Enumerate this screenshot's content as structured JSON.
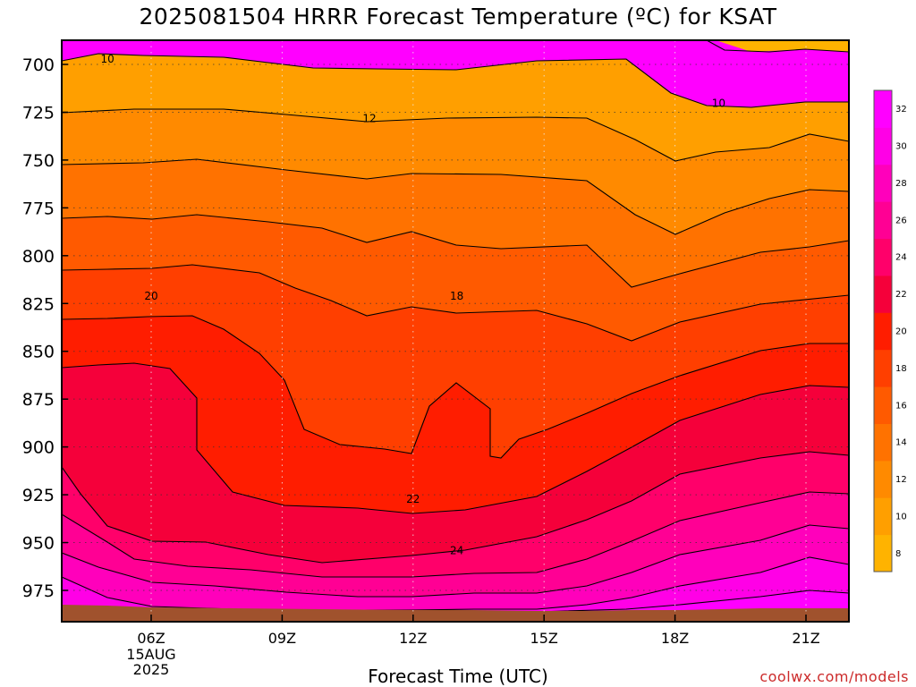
{
  "header": {
    "title": "2025081504 HRRR Forecast Temperature (ºC) for KSAT"
  },
  "footer": {
    "xlabel": "Forecast Time (UTC)",
    "credit": "coolwx.com/models"
  },
  "colors": {
    "terrain": "#a0522d",
    "fill_bands": [
      "#ffb300",
      "#ff9f00",
      "#ff8a00",
      "#ff7200",
      "#ff5a00",
      "#ff3f00",
      "#ff1d00",
      "#f5003a",
      "#ff006a",
      "#ff0094",
      "#ff00bb",
      "#ff00e6",
      "#ff00ff"
    ]
  },
  "chart_data": {
    "type": "heatmap",
    "title": "2025081504 HRRR Forecast Temperature (ºC) for KSAT",
    "xlabel": "Forecast Time (UTC)",
    "ylabel": "",
    "x_ticks": [
      "06Z",
      "09Z",
      "12Z",
      "15Z",
      "18Z",
      "21Z"
    ],
    "x_date_label": [
      "15AUG",
      "2025"
    ],
    "y_ticks": [
      700,
      725,
      750,
      775,
      800,
      825,
      850,
      875,
      900,
      925,
      950,
      975
    ],
    "y_inverted": true,
    "colorbar_levels": [
      8,
      10,
      12,
      14,
      16,
      18,
      20,
      22,
      24,
      26,
      28,
      30,
      32
    ],
    "contour_labels": [
      {
        "text": "10",
        "time": "05Z",
        "pressure": 697
      },
      {
        "text": "10",
        "time": "19Z",
        "pressure": 720
      },
      {
        "text": "12",
        "time": "11Z",
        "pressure": 728
      },
      {
        "text": "18",
        "time": "13Z",
        "pressure": 821
      },
      {
        "text": "20",
        "time": "06Z",
        "pressure": 821
      },
      {
        "text": "22",
        "time": "12Z",
        "pressure": 927
      },
      {
        "text": "24",
        "time": "13Z",
        "pressure": 954
      }
    ],
    "grid": true
  }
}
